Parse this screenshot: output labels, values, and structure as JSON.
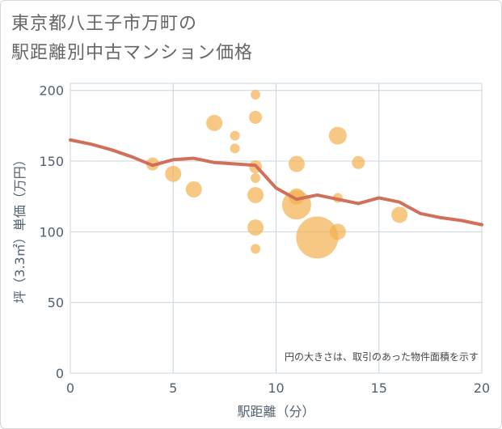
{
  "title_line1": "東京都八王子市万町の",
  "title_line2": "駅距離別中古マンション価格",
  "chart_data": {
    "type": "scatter",
    "xlabel": "駅距離（分）",
    "ylabel": "坪（3.3㎡）単価（万円）",
    "xlim": [
      0,
      20
    ],
    "ylim": [
      0,
      205
    ],
    "xticks": [
      "0",
      "5",
      "10",
      "15",
      "20"
    ],
    "yticks": [
      "0",
      "50",
      "100",
      "150",
      "200"
    ],
    "note": "円の大きさは、取引のあった物件面積を示す",
    "grid": true,
    "colors": {
      "bubble": "#f2b04f",
      "line": "#d0705a",
      "grid": "#c8d4e0",
      "axis": "#506070"
    },
    "bubbles": [
      {
        "x": 4,
        "y": 148,
        "size": 8
      },
      {
        "x": 5,
        "y": 141,
        "size": 10
      },
      {
        "x": 6,
        "y": 130,
        "size": 10
      },
      {
        "x": 7,
        "y": 177,
        "size": 10
      },
      {
        "x": 8,
        "y": 168,
        "size": 6
      },
      {
        "x": 8,
        "y": 159,
        "size": 6
      },
      {
        "x": 9,
        "y": 197,
        "size": 6
      },
      {
        "x": 9,
        "y": 181,
        "size": 8
      },
      {
        "x": 9,
        "y": 146,
        "size": 8
      },
      {
        "x": 9,
        "y": 138,
        "size": 6
      },
      {
        "x": 9,
        "y": 126,
        "size": 10
      },
      {
        "x": 9,
        "y": 103,
        "size": 10
      },
      {
        "x": 9,
        "y": 88,
        "size": 6
      },
      {
        "x": 11,
        "y": 148,
        "size": 10
      },
      {
        "x": 11,
        "y": 125,
        "size": 10
      },
      {
        "x": 11,
        "y": 119,
        "size": 18
      },
      {
        "x": 12,
        "y": 96,
        "size": 26
      },
      {
        "x": 13,
        "y": 168,
        "size": 11
      },
      {
        "x": 13,
        "y": 124,
        "size": 6
      },
      {
        "x": 13,
        "y": 100,
        "size": 10
      },
      {
        "x": 14,
        "y": 149,
        "size": 8
      },
      {
        "x": 16,
        "y": 112,
        "size": 10
      }
    ],
    "line": [
      {
        "x": 0,
        "y": 165
      },
      {
        "x": 1,
        "y": 162
      },
      {
        "x": 2,
        "y": 158
      },
      {
        "x": 3,
        "y": 153
      },
      {
        "x": 4,
        "y": 147
      },
      {
        "x": 5,
        "y": 151
      },
      {
        "x": 6,
        "y": 152
      },
      {
        "x": 7,
        "y": 149
      },
      {
        "x": 8,
        "y": 148
      },
      {
        "x": 9,
        "y": 147
      },
      {
        "x": 10,
        "y": 131
      },
      {
        "x": 11,
        "y": 123
      },
      {
        "x": 12,
        "y": 126
      },
      {
        "x": 13,
        "y": 123
      },
      {
        "x": 14,
        "y": 120
      },
      {
        "x": 15,
        "y": 124
      },
      {
        "x": 16,
        "y": 121
      },
      {
        "x": 17,
        "y": 113
      },
      {
        "x": 18,
        "y": 110
      },
      {
        "x": 19,
        "y": 108
      },
      {
        "x": 20,
        "y": 105
      }
    ]
  }
}
